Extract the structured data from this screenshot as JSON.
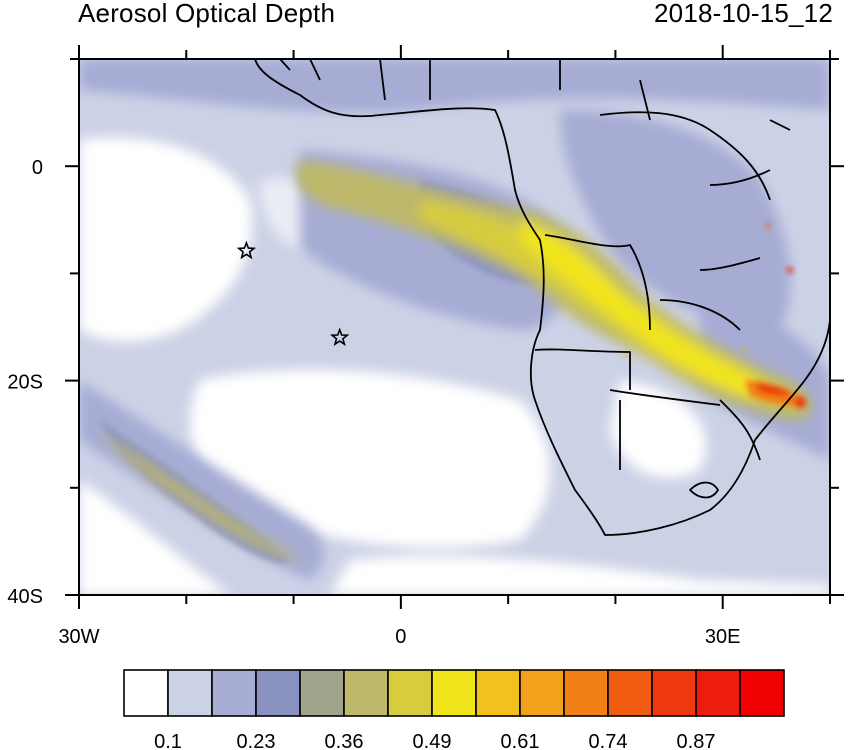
{
  "header": {
    "title": "Aerosol Optical Depth",
    "timestamp": "2018-10-15_12"
  },
  "map": {
    "lon_range": [
      -30,
      40
    ],
    "lat_range": [
      -40,
      10
    ],
    "x_ticks": [
      {
        "lon": -30,
        "label": "30W"
      },
      {
        "lon": 0,
        "label": "0"
      },
      {
        "lon": 30,
        "label": "30E"
      }
    ],
    "y_ticks": [
      {
        "lat": 0,
        "label": "0"
      },
      {
        "lat": -20,
        "label": "20S"
      },
      {
        "lat": -40,
        "label": "40S"
      }
    ],
    "markers": [
      {
        "name": "star-marker-north",
        "lon": -14.4,
        "lat": -7.9
      },
      {
        "name": "star-marker-south",
        "lon": -5.7,
        "lat": -16.0
      }
    ],
    "peak_regions": [
      "Angola-Zambia-Mozambique smoke plume",
      "southern Atlantic band"
    ]
  },
  "colorbar": {
    "colors": [
      "#ffffff",
      "#ccd2e6",
      "#a6acd4",
      "#8a92c2",
      "#a0a48a",
      "#bdb86a",
      "#d6cc3e",
      "#f0e41a",
      "#f4c020",
      "#f3a11c",
      "#f18017",
      "#ef5c12",
      "#ee3a0e",
      "#ee1c0c",
      "#f00000"
    ],
    "labels": [
      "0.1",
      "0.23",
      "0.36",
      "0.49",
      "0.61",
      "0.74",
      "0.87"
    ]
  }
}
